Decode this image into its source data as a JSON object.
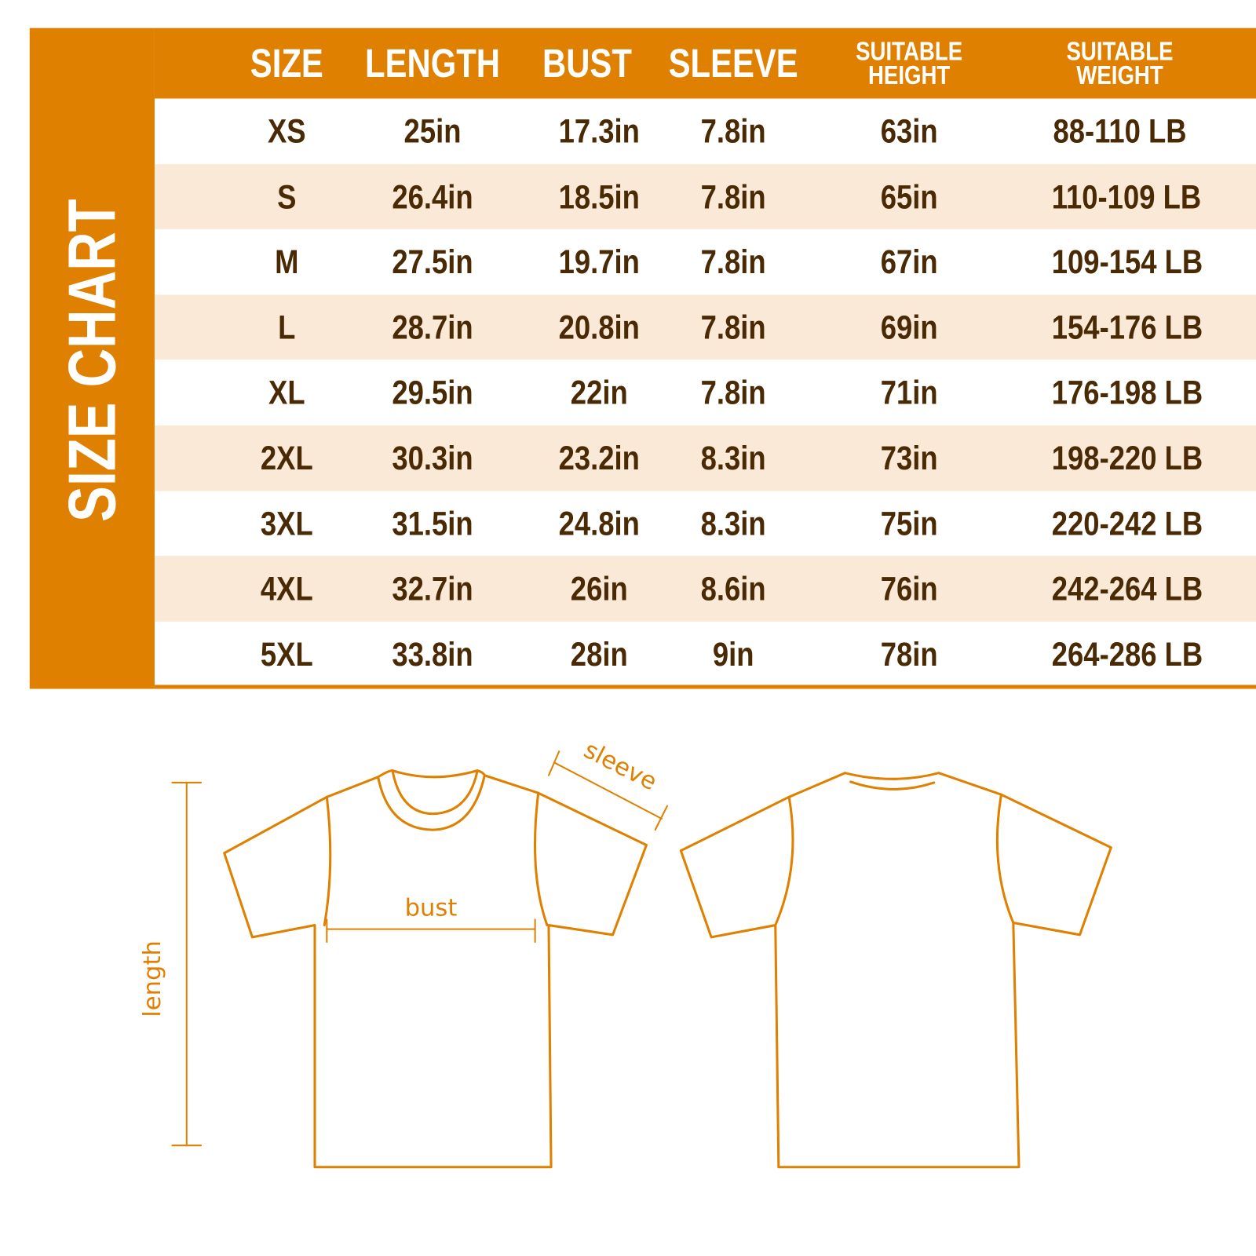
{
  "title": "SIZE CHART",
  "colors": {
    "accent": "#E08000",
    "row_alt": "#FAE9D7",
    "text": "#4A2A05"
  },
  "headers": [
    "SIZE",
    "LENGTH",
    "BUST",
    "SLEEVE",
    "SUITABLE HEIGHT",
    "SUITABLE WEIGHT"
  ],
  "header_lines": {
    "height": [
      "SUITABLE",
      "HEIGHT"
    ],
    "weight": [
      "SUITABLE",
      "WEIGHT"
    ]
  },
  "rows": [
    [
      "XS",
      "25in",
      "17.3in",
      "7.8in",
      "63in",
      "88-110 LB"
    ],
    [
      "S",
      "26.4in",
      "18.5in",
      "7.8in",
      "65in",
      "110-109 LB"
    ],
    [
      "M",
      "27.5in",
      "19.7in",
      "7.8in",
      "67in",
      "109-154 LB"
    ],
    [
      "L",
      "28.7in",
      "20.8in",
      "7.8in",
      "69in",
      "154-176 LB"
    ],
    [
      "XL",
      "29.5in",
      "22in",
      "7.8in",
      "71in",
      "176-198 LB"
    ],
    [
      "2XL",
      "30.3in",
      "23.2in",
      "8.3in",
      "73in",
      "198-220 LB"
    ],
    [
      "3XL",
      "31.5in",
      "24.8in",
      "8.3in",
      "75in",
      "220-242 LB"
    ],
    [
      "4XL",
      "32.7in",
      "26in",
      "8.6in",
      "76in",
      "242-264 LB"
    ],
    [
      "5XL",
      "33.8in",
      "28in",
      "9in",
      "78in",
      "264-286 LB"
    ]
  ],
  "diagram": {
    "sleeve": "sleeve",
    "bust": "bust",
    "length": "length"
  }
}
